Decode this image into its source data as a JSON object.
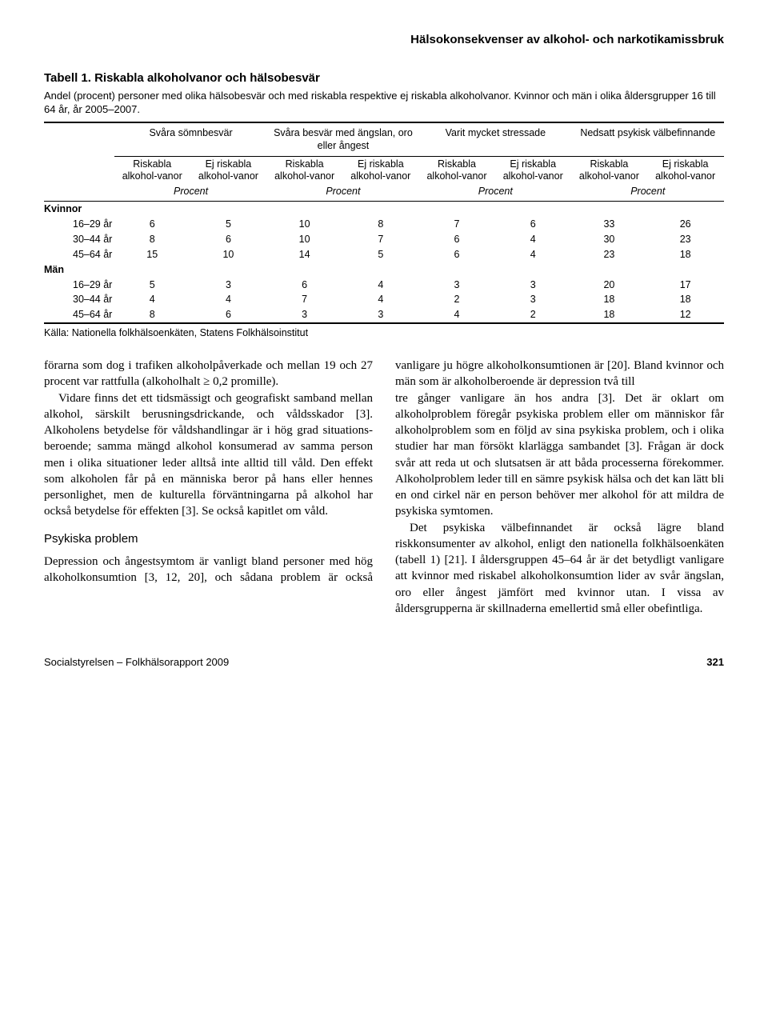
{
  "header": {
    "running_title": "Hälsokonsekvenser av alkohol- och narkotikamissbruk"
  },
  "table": {
    "title": "Tabell 1. Riskabla alkoholvanor och hälsobesvär",
    "caption": "Andel (procent) personer med olika hälsobesvär och med riskabla respektive ej riskabla alkoholvanor. Kvinnor och män i olika åldersgrupper 16 till 64 år, år 2005–2007.",
    "groups": [
      "Svåra sömnbesvär",
      "Svåra besvär med ängslan, oro eller ångest",
      "Varit mycket stressade",
      "Nedsatt psykisk välbefinnande"
    ],
    "subhead_risk": "Riskabla alkohol-vanor",
    "subhead_norisk": "Ej riskabla alkohol-vanor",
    "unit": "Procent",
    "section_women": "Kvinnor",
    "section_men": "Män",
    "age_labels": [
      "16–29 år",
      "30–44 år",
      "45–64 år"
    ],
    "women_rows": [
      [
        6,
        5,
        10,
        8,
        7,
        6,
        33,
        26
      ],
      [
        8,
        6,
        10,
        7,
        6,
        4,
        30,
        23
      ],
      [
        15,
        10,
        14,
        5,
        6,
        4,
        23,
        18
      ]
    ],
    "men_rows": [
      [
        5,
        3,
        6,
        4,
        3,
        3,
        20,
        17
      ],
      [
        4,
        4,
        7,
        4,
        2,
        3,
        18,
        18
      ],
      [
        8,
        6,
        3,
        3,
        4,
        2,
        18,
        12
      ]
    ],
    "source": "Källa: Nationella folkhälsoenkäten, Statens Folkhälsoinstitut"
  },
  "body": {
    "p1": "förarna som dog i trafiken alkoholpåverkade och mellan 19 och 27 procent var rattfulla (alkoholhalt ≥ 0,2 promille).",
    "p2": "Vidare finns det ett tidsmässigt och geografiskt samband mellan alkohol, särskilt berusnings­drickande, och våldsskador [3]. Alkoholens betydelse för våldshandlingar är i hög grad situations­beroende; samma mängd alkohol konsumerad av samma person men i olika situationer leder alltså inte alltid till våld. Den effekt som alkoholen får på en människa beror på hans eller hennes personlighet, men de kulturella förväntningarna på alkohol har också betydelse för effekten [3]. Se också kapitlet om våld.",
    "h1": "Psykiska problem",
    "p3": "Depression och ångestsymtom är vanligt bland personer med hög alkoholkonsumtion [3, 12, 20], och sådana problem är också vanligare ju högre alkoholkonsumtionen är [20]. Bland kvinnor och män som är alkoholberoende är depression två till",
    "p4": "tre gånger vanligare än hos andra [3]. Det är oklart om alkoholproblem föregår psykiska problem eller om människor får alkoholproblem som en följd av sina psykiska problem, och i olika studier har man försökt klarlägga sambandet [3]. Frågan är dock svår att reda ut och slutsatsen är att båda processerna förekommer. Alkoholproblem leder till en sämre psykisk hälsa och det kan lätt bli en ond cirkel när en person behöver mer alkohol för att mildra de psykiska symtomen.",
    "p5": "Det psykiska välbefinnandet är också lägre bland riskkonsumenter av alkohol, enligt den nationella folkhälsoenkäten (tabell 1) [21]. I åldersgruppen 45–64 år är det betydligt vanligare att kvinnor med riskabel alkoholkonsumtion lider av svår ängslan, oro eller ångest jämfört med kvinnor utan. I vissa av åldersgrupperna är skillnaderna emellertid små eller obefintliga."
  },
  "footer": {
    "left": "Socialstyrelsen – Folkhälsorapport 2009",
    "page": "321"
  }
}
